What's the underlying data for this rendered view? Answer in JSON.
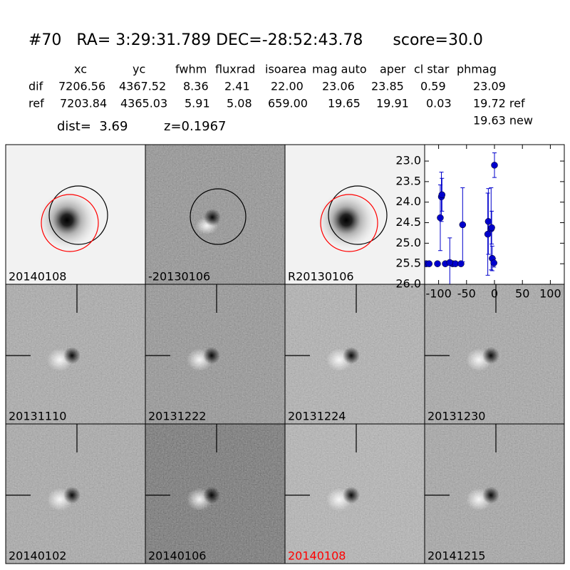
{
  "header": {
    "title": "#70   RA= 3:29:31.789 DEC=-28:52:43.78      score=30.0",
    "columns": [
      "xc",
      "yc",
      "fwhm",
      "fluxrad",
      "isoarea",
      "mag auto",
      "aper",
      "cl star",
      "phmag"
    ],
    "rows": [
      {
        "label": "dif",
        "values": [
          "7206.56",
          "4367.52",
          "8.36",
          "2.41",
          "22.00",
          "23.06",
          "23.85",
          "0.59",
          "23.09"
        ]
      },
      {
        "label": "ref",
        "values": [
          "7203.84",
          "4365.03",
          "5.91",
          "5.08",
          "659.00",
          "19.65",
          "19.91",
          "0.03",
          "19.72 ref"
        ]
      }
    ],
    "new_mag": "19.63 new",
    "dist": "dist=  3.69",
    "z": "z=0.1967"
  },
  "stamps": [
    {
      "label": "20140108",
      "color": "#000000"
    },
    {
      "label": "-20130106",
      "color": "#000000"
    },
    {
      "label": "R20130106",
      "color": "#000000"
    },
    {
      "label": "20131110",
      "color": "#000000"
    },
    {
      "label": "20131222",
      "color": "#000000"
    },
    {
      "label": "20131224",
      "color": "#000000"
    },
    {
      "label": "20131230",
      "color": "#000000"
    },
    {
      "label": "20140102",
      "color": "#000000"
    },
    {
      "label": "20140106",
      "color": "#000000"
    },
    {
      "label": "20140108",
      "color": "#ff0000"
    },
    {
      "label": "20141215",
      "color": "#000000"
    }
  ],
  "chart_data": {
    "type": "scatter",
    "color": "#0000cc",
    "x": [
      -122,
      -117,
      -102,
      -88,
      -75,
      -70,
      -60,
      -97,
      -95,
      -94,
      -80,
      -57,
      -12,
      -11,
      -6,
      -5,
      -4,
      -1,
      0
    ],
    "values": [
      25.5,
      25.5,
      25.5,
      25.5,
      25.5,
      25.5,
      25.5,
      24.38,
      23.87,
      23.82,
      25.47,
      24.55,
      24.78,
      24.47,
      24.65,
      24.62,
      25.37,
      25.48,
      23.1
    ],
    "errors": [
      0.05,
      0.05,
      0.05,
      0.05,
      0.05,
      0.05,
      0.05,
      0.8,
      0.6,
      0.4,
      0.6,
      0.9,
      1.0,
      0.8,
      1.0,
      0.4,
      0.3,
      0.1,
      0.3
    ],
    "xlim": [
      -125,
      125
    ],
    "ylim": [
      26.0,
      22.6
    ],
    "xticks": [
      -100,
      -50,
      0,
      50,
      100
    ],
    "yticks": [
      {
        "value": 23,
        "label": "23.0"
      },
      {
        "value": 23.5,
        "label": "23.5"
      },
      {
        "value": 24,
        "label": "24.0"
      },
      {
        "value": 24.5,
        "label": "24.5"
      },
      {
        "value": 25,
        "label": "25.0"
      },
      {
        "value": 25.5,
        "label": "25.5"
      },
      {
        "value": 26,
        "label": "26.0"
      }
    ]
  }
}
